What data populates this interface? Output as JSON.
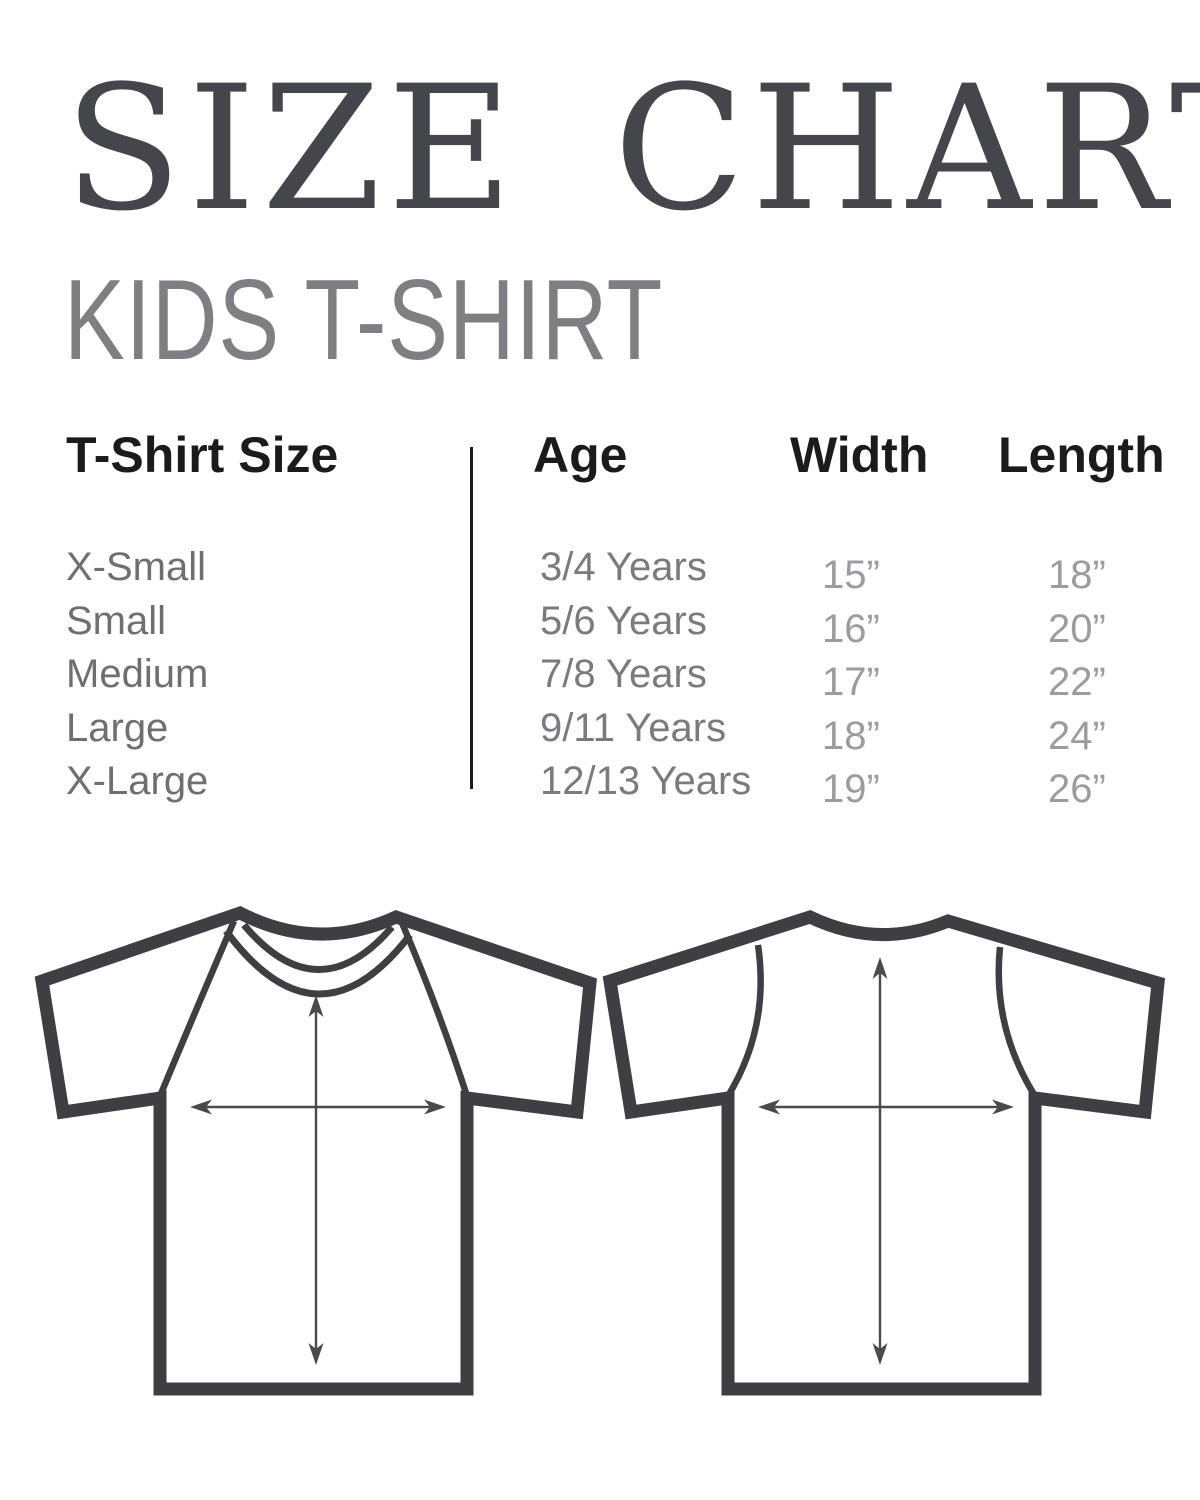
{
  "header": {
    "title": "SIZE CHART",
    "subtitle": "KIDS T-SHIRT"
  },
  "size_table": {
    "columns": {
      "size": "T-Shirt Size",
      "age": "Age",
      "width": "Width",
      "length": "Length"
    },
    "sizes": [
      "X-Small",
      "Small",
      "Medium",
      "Large",
      "X-Large"
    ],
    "ages": [
      "3/4 Years",
      "5/6 Years",
      "7/8 Years",
      "9/11 Years",
      "12/13 Years"
    ],
    "widths": [
      "15”",
      "16”",
      "17”",
      "18”",
      "19”"
    ],
    "lengths": [
      "18”",
      "20”",
      "22”",
      "24”",
      "26”"
    ]
  },
  "colors": {
    "title_text": "#45454c",
    "subtitle_text": "#7f7f83",
    "header_text": "#1b1b1d",
    "size_text": "#6f6f73",
    "age_text": "#7b7b7f",
    "measurement_text": "#9c9ca0",
    "shirt_outline": "#3e3e43",
    "arrow": "#4a4a4e",
    "divider": "#1d1d1f",
    "background": "#ffffff"
  }
}
